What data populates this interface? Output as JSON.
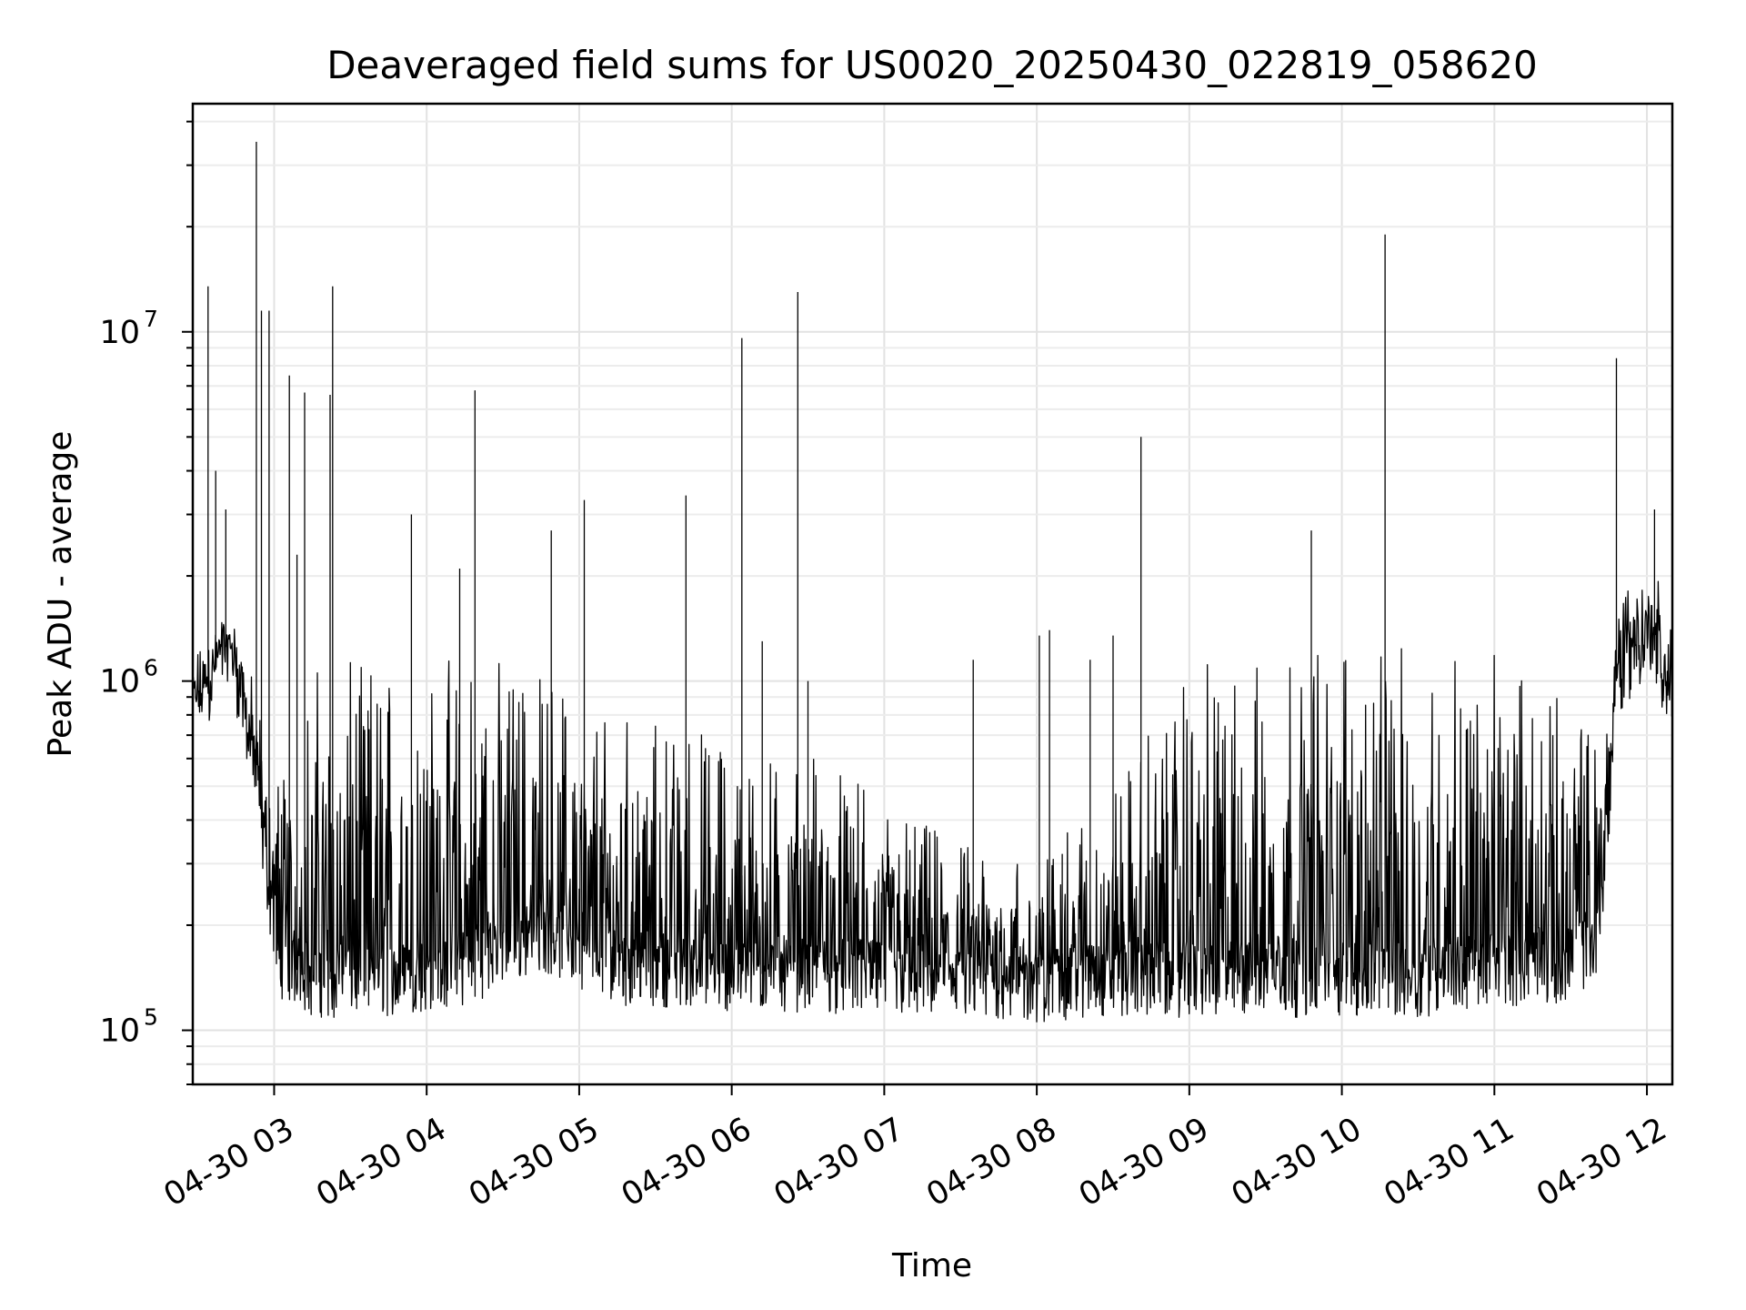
{
  "chart_data": {
    "type": "line",
    "title": "Deaveraged field sums for US0020_20250430_022819_058620",
    "xlabel": "Time",
    "ylabel": "Peak ADU - average",
    "yscale": "log",
    "xlim": [
      "2025-04-30 02:28",
      "2025-04-30 12:10"
    ],
    "ylim": [
      70000,
      45000000
    ],
    "grid": true,
    "grid_minor": true,
    "line_color": "#000000",
    "xticks": [
      {
        "t": "2025-04-30 03:00",
        "label": "04-30 03"
      },
      {
        "t": "2025-04-30 04:00",
        "label": "04-30 04"
      },
      {
        "t": "2025-04-30 05:00",
        "label": "04-30 05"
      },
      {
        "t": "2025-04-30 06:00",
        "label": "04-30 06"
      },
      {
        "t": "2025-04-30 07:00",
        "label": "04-30 07"
      },
      {
        "t": "2025-04-30 08:00",
        "label": "04-30 08"
      },
      {
        "t": "2025-04-30 09:00",
        "label": "04-30 09"
      },
      {
        "t": "2025-04-30 10:00",
        "label": "04-30 10"
      },
      {
        "t": "2025-04-30 11:00",
        "label": "04-30 11"
      },
      {
        "t": "2025-04-30 12:00",
        "label": "04-30 12"
      }
    ],
    "yticks": [
      {
        "value": 100000,
        "base": "10",
        "exp": "5"
      },
      {
        "value": 1000000,
        "base": "10",
        "exp": "6"
      },
      {
        "value": 10000000,
        "base": "10",
        "exp": "7"
      }
    ],
    "series": [
      {
        "baseline": [
          [
            "2025-04-30 02:28",
            800000
          ],
          [
            "2025-04-30 02:35",
            1000000
          ],
          [
            "2025-04-30 02:42",
            1300000
          ],
          [
            "2025-04-30 02:47",
            900000
          ],
          [
            "2025-04-30 02:53",
            500000
          ],
          [
            "2025-04-30 02:58",
            250000
          ],
          [
            "2025-04-30 03:02",
            160000
          ],
          [
            "2025-04-30 03:15",
            140000
          ],
          [
            "2025-04-30 03:30",
            140000
          ],
          [
            "2025-04-30 03:45",
            140000
          ],
          [
            "2025-04-30 04:00",
            145000
          ],
          [
            "2025-04-30 04:15",
            150000
          ],
          [
            "2025-04-30 04:30",
            170000
          ],
          [
            "2025-04-30 04:45",
            190000
          ],
          [
            "2025-04-30 05:00",
            170000
          ],
          [
            "2025-04-30 05:20",
            150000
          ],
          [
            "2025-04-30 05:40",
            150000
          ],
          [
            "2025-04-30 06:00",
            145000
          ],
          [
            "2025-04-30 06:30",
            145000
          ],
          [
            "2025-04-30 07:00",
            140000
          ],
          [
            "2025-04-30 07:30",
            135000
          ],
          [
            "2025-04-30 08:00",
            135000
          ],
          [
            "2025-04-30 08:30",
            140000
          ],
          [
            "2025-04-30 09:00",
            140000
          ],
          [
            "2025-04-30 09:30",
            140000
          ],
          [
            "2025-04-30 10:00",
            140000
          ],
          [
            "2025-04-30 10:30",
            140000
          ],
          [
            "2025-04-30 11:00",
            150000
          ],
          [
            "2025-04-30 11:30",
            155000
          ],
          [
            "2025-04-30 11:40",
            180000
          ],
          [
            "2025-04-30 11:45",
            400000
          ],
          [
            "2025-04-30 11:48",
            1000000
          ],
          [
            "2025-04-30 11:55",
            1200000
          ],
          [
            "2025-04-30 12:02",
            1300000
          ],
          [
            "2025-04-30 12:08",
            900000
          ],
          [
            "2025-04-30 12:10",
            900000
          ]
        ],
        "band_top": [
          [
            "2025-04-30 02:28",
            1200000
          ],
          [
            "2025-04-30 02:45",
            1500000
          ],
          [
            "2025-04-30 02:58",
            700000
          ],
          [
            "2025-04-30 03:05",
            600000
          ],
          [
            "2025-04-30 03:15",
            1100000
          ],
          [
            "2025-04-30 04:00",
            1200000
          ],
          [
            "2025-04-30 04:30",
            1200000
          ],
          [
            "2025-04-30 05:00",
            1000000
          ],
          [
            "2025-04-30 05:30",
            800000
          ],
          [
            "2025-04-30 06:00",
            700000
          ],
          [
            "2025-04-30 06:30",
            650000
          ],
          [
            "2025-04-30 07:00",
            450000
          ],
          [
            "2025-04-30 07:30",
            350000
          ],
          [
            "2025-04-30 08:00",
            300000
          ],
          [
            "2025-04-30 08:30",
            500000
          ],
          [
            "2025-04-30 09:00",
            1100000
          ],
          [
            "2025-04-30 10:00",
            1300000
          ],
          [
            "2025-04-30 11:00",
            1200000
          ],
          [
            "2025-04-30 11:40",
            800000
          ],
          [
            "2025-04-30 11:50",
            2000000
          ],
          [
            "2025-04-30 12:10",
            2000000
          ]
        ],
        "spikes": [
          [
            "2025-04-30 02:34",
            13500000
          ],
          [
            "2025-04-30 02:37",
            4000000
          ],
          [
            "2025-04-30 02:41",
            3100000
          ],
          [
            "2025-04-30 02:53",
            35000000
          ],
          [
            "2025-04-30 02:55",
            11500000
          ],
          [
            "2025-04-30 02:58",
            11500000
          ],
          [
            "2025-04-30 03:06",
            7500000
          ],
          [
            "2025-04-30 03:09",
            2300000
          ],
          [
            "2025-04-30 03:12",
            6700000
          ],
          [
            "2025-04-30 03:22",
            6600000
          ],
          [
            "2025-04-30 03:23",
            13500000
          ],
          [
            "2025-04-30 03:54",
            3000000
          ],
          [
            "2025-04-30 04:13",
            2100000
          ],
          [
            "2025-04-30 04:19",
            6800000
          ],
          [
            "2025-04-30 04:49",
            2700000
          ],
          [
            "2025-04-30 05:02",
            3300000
          ],
          [
            "2025-04-30 05:42",
            3400000
          ],
          [
            "2025-04-30 06:04",
            9600000
          ],
          [
            "2025-04-30 06:12",
            1300000
          ],
          [
            "2025-04-30 06:26",
            13000000
          ],
          [
            "2025-04-30 06:30",
            1000000
          ],
          [
            "2025-04-30 07:35",
            1150000
          ],
          [
            "2025-04-30 08:01",
            1350000
          ],
          [
            "2025-04-30 08:05",
            1400000
          ],
          [
            "2025-04-30 08:10",
            320000
          ],
          [
            "2025-04-30 08:21",
            1150000
          ],
          [
            "2025-04-30 08:30",
            1350000
          ],
          [
            "2025-04-30 08:41",
            5000000
          ],
          [
            "2025-04-30 09:48",
            2700000
          ],
          [
            "2025-04-30 10:17",
            19000000
          ],
          [
            "2025-04-30 11:23",
            700000
          ],
          [
            "2025-04-30 11:48",
            8400000
          ],
          [
            "2025-04-30 12:03",
            3100000
          ]
        ]
      }
    ]
  }
}
